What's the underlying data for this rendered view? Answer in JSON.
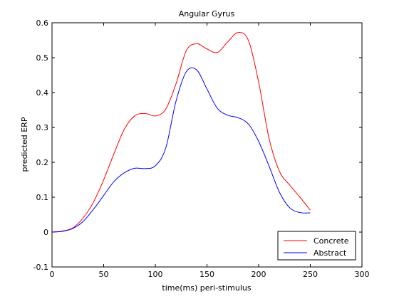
{
  "chart_data": {
    "type": "line",
    "title": "Angular Gyrus",
    "xlabel": "time(ms) peri-stimulus",
    "ylabel": "predicted ERP",
    "xlim": [
      0,
      300
    ],
    "ylim": [
      -0.1,
      0.6
    ],
    "xticks": [
      0,
      50,
      100,
      150,
      200,
      250,
      300
    ],
    "yticks": [
      -0.1,
      0,
      0.1,
      0.2,
      0.3,
      0.4,
      0.5,
      0.6
    ],
    "xtick_labels": [
      "0",
      "50",
      "100",
      "150",
      "200",
      "250",
      "300"
    ],
    "ytick_labels": [
      "-0.1",
      "0",
      "0.1",
      "0.2",
      "0.3",
      "0.4",
      "0.5",
      "0.6"
    ],
    "grid": false,
    "legend_position": "bottom-right",
    "series": [
      {
        "name": "Concrete",
        "color": "#ff0000",
        "x": [
          0,
          10,
          20,
          30,
          40,
          50,
          60,
          70,
          80,
          90,
          100,
          110,
          120,
          130,
          140,
          150,
          160,
          170,
          180,
          190,
          200,
          210,
          220,
          230,
          240,
          250
        ],
        "y": [
          0.0,
          0.003,
          0.012,
          0.04,
          0.085,
          0.15,
          0.225,
          0.295,
          0.333,
          0.34,
          0.333,
          0.352,
          0.425,
          0.52,
          0.54,
          0.525,
          0.515,
          0.545,
          0.572,
          0.55,
          0.43,
          0.27,
          0.175,
          0.135,
          0.1,
          0.063
        ]
      },
      {
        "name": "Abstract",
        "color": "#0000ff",
        "x": [
          0,
          10,
          20,
          30,
          40,
          50,
          60,
          70,
          80,
          90,
          100,
          110,
          120,
          130,
          140,
          150,
          160,
          170,
          180,
          190,
          200,
          210,
          220,
          230,
          240,
          250
        ],
        "y": [
          0.0,
          0.002,
          0.01,
          0.03,
          0.065,
          0.105,
          0.145,
          0.17,
          0.183,
          0.182,
          0.19,
          0.24,
          0.375,
          0.46,
          0.465,
          0.41,
          0.355,
          0.335,
          0.328,
          0.31,
          0.26,
          0.19,
          0.115,
          0.07,
          0.056,
          0.055
        ]
      }
    ]
  }
}
